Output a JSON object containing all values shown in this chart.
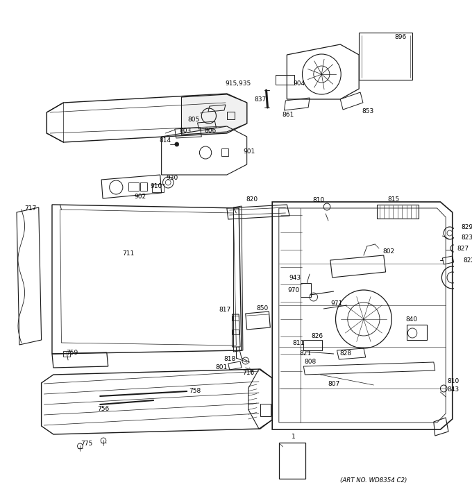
{
  "bg_color": "#ffffff",
  "line_color": "#1a1a1a",
  "figure_width": 6.8,
  "figure_height": 7.25,
  "art_no": "(ART NO. WD8354 C2)"
}
